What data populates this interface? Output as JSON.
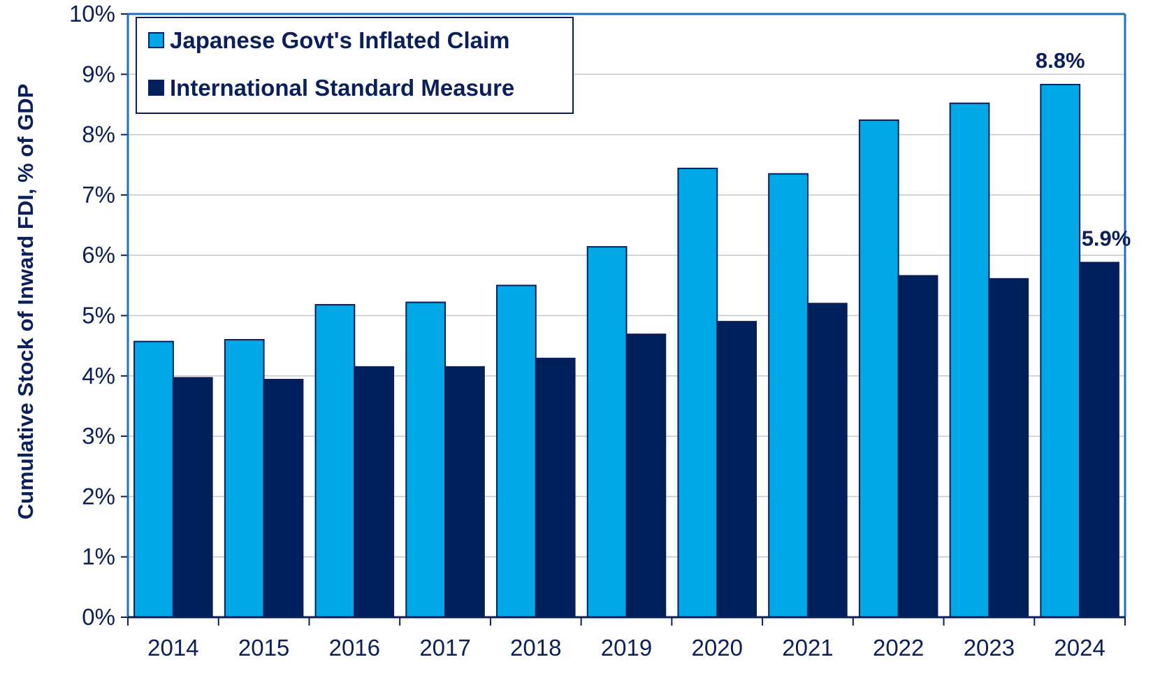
{
  "chart_data": {
    "type": "bar",
    "title": "",
    "xlabel": "",
    "ylabel": "Cumulative Stock of Inward FDI, % of GDP",
    "ylim": [
      0,
      10
    ],
    "y_ticks": [
      "0%",
      "1%",
      "2%",
      "3%",
      "4%",
      "5%",
      "6%",
      "7%",
      "8%",
      "9%",
      "10%"
    ],
    "grid": true,
    "legend_position": "top-left",
    "categories": [
      "2014",
      "2015",
      "2016",
      "2017",
      "2018",
      "2019",
      "2020",
      "2021",
      "2022",
      "2023",
      "2024"
    ],
    "series": [
      {
        "name": "Japanese Govt's Inflated Claim",
        "color": "#00a8e8",
        "values": [
          4.57,
          4.6,
          5.18,
          5.22,
          5.5,
          6.14,
          7.44,
          7.35,
          8.24,
          8.52,
          8.83
        ]
      },
      {
        "name": "International Standard Measure",
        "color": "#00205b",
        "values": [
          3.97,
          3.94,
          4.15,
          4.15,
          4.29,
          4.69,
          4.9,
          5.2,
          5.66,
          5.61,
          5.88
        ]
      }
    ],
    "annotations": [
      {
        "text": "8.8%",
        "series": 0,
        "category": "2024"
      },
      {
        "text": "5.9%",
        "series": 1,
        "category": "2024"
      }
    ]
  }
}
